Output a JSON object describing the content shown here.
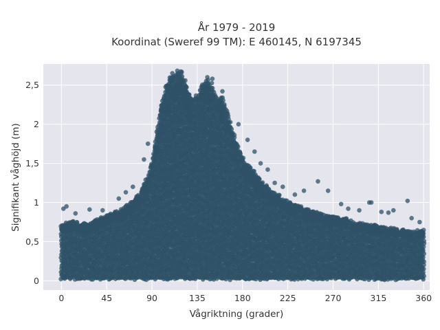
{
  "chart_data": {
    "type": "scatter",
    "title": "År 1979 - 2019",
    "subtitle": "Koordinat (Sweref 99 TM): E 460145, N 6197345",
    "xlabel": "Vågriktning (grader)",
    "ylabel": "Signifikant våghöjd (m)",
    "xlim": [
      -18,
      366
    ],
    "ylim": [
      -0.12,
      2.77
    ],
    "xticks": [
      0,
      45,
      90,
      135,
      180,
      225,
      270,
      315,
      360
    ],
    "xtick_labels": [
      "0",
      "45",
      "90",
      "135",
      "180",
      "225",
      "270",
      "315",
      "360"
    ],
    "yticks": [
      0,
      0.5,
      1,
      1.5,
      2,
      2.5
    ],
    "ytick_labels": [
      "0",
      "0,5",
      "1",
      "1,5",
      "2",
      "2,5"
    ],
    "grid": true,
    "legend": "none",
    "marker_color": "#2f5168",
    "background_color": "#e5e5ee",
    "envelope": {
      "note_direction_deg": [
        0,
        10,
        20,
        30,
        40,
        50,
        60,
        70,
        80,
        90,
        95,
        100,
        105,
        110,
        115,
        120,
        125,
        130,
        135,
        140,
        145,
        150,
        155,
        160,
        165,
        170,
        175,
        180,
        190,
        200,
        210,
        220,
        230,
        240,
        250,
        260,
        270,
        280,
        290,
        300,
        310,
        320,
        330,
        340,
        350,
        360
      ],
      "max_height_m": [
        0.72,
        0.75,
        0.72,
        0.74,
        0.8,
        0.85,
        0.9,
        1.0,
        1.15,
        1.5,
        1.9,
        2.3,
        2.5,
        2.62,
        2.65,
        2.62,
        2.45,
        2.3,
        2.35,
        2.5,
        2.55,
        2.48,
        2.35,
        2.3,
        2.15,
        1.9,
        1.72,
        1.55,
        1.4,
        1.25,
        1.12,
        1.05,
        0.98,
        0.92,
        0.88,
        0.84,
        0.82,
        0.8,
        0.75,
        0.72,
        0.7,
        0.68,
        0.66,
        0.64,
        0.62,
        0.65
      ],
      "min_height_m": 0.02
    },
    "outliers": [
      {
        "x": 2,
        "y": 0.92
      },
      {
        "x": 5,
        "y": 0.95
      },
      {
        "x": 14,
        "y": 0.86
      },
      {
        "x": 28,
        "y": 0.91
      },
      {
        "x": 41,
        "y": 0.9
      },
      {
        "x": 57,
        "y": 1.05
      },
      {
        "x": 64,
        "y": 1.13
      },
      {
        "x": 71,
        "y": 1.2
      },
      {
        "x": 82,
        "y": 1.55
      },
      {
        "x": 86,
        "y": 1.75
      },
      {
        "x": 119,
        "y": 2.65
      },
      {
        "x": 124,
        "y": 2.48
      },
      {
        "x": 145,
        "y": 2.6
      },
      {
        "x": 150,
        "y": 2.58
      },
      {
        "x": 160,
        "y": 2.42
      },
      {
        "x": 176,
        "y": 2.0
      },
      {
        "x": 185,
        "y": 1.8
      },
      {
        "x": 192,
        "y": 1.65
      },
      {
        "x": 198,
        "y": 1.5
      },
      {
        "x": 205,
        "y": 1.42
      },
      {
        "x": 212,
        "y": 1.25
      },
      {
        "x": 220,
        "y": 1.2
      },
      {
        "x": 232,
        "y": 1.1
      },
      {
        "x": 241,
        "y": 1.15
      },
      {
        "x": 255,
        "y": 1.27
      },
      {
        "x": 265,
        "y": 1.15
      },
      {
        "x": 278,
        "y": 0.98
      },
      {
        "x": 285,
        "y": 0.92
      },
      {
        "x": 296,
        "y": 0.9
      },
      {
        "x": 306,
        "y": 1.0
      },
      {
        "x": 308,
        "y": 1.0
      },
      {
        "x": 318,
        "y": 0.88
      },
      {
        "x": 325,
        "y": 0.87
      },
      {
        "x": 330,
        "y": 0.9
      },
      {
        "x": 344,
        "y": 1.02
      },
      {
        "x": 348,
        "y": 0.8
      },
      {
        "x": 356,
        "y": 0.75
      }
    ]
  }
}
